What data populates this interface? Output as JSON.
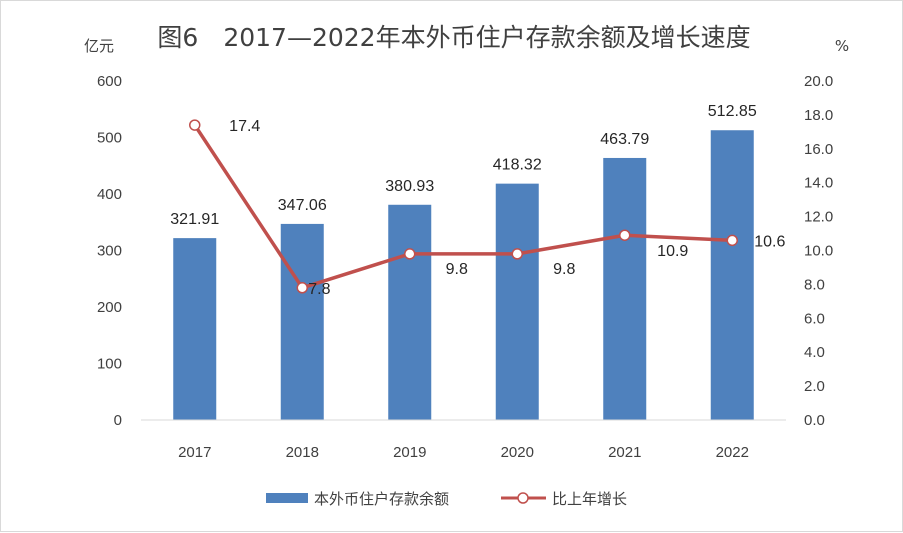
{
  "chart_data": {
    "type": "bar",
    "title": "图6　2017—2022年本外币住户存款余额及增长速度",
    "y_left_unit": "亿元",
    "y_right_unit": "%",
    "categories": [
      "2017",
      "2018",
      "2019",
      "2020",
      "2021",
      "2022"
    ],
    "y_left_ticks": [
      "0",
      "100",
      "200",
      "300",
      "400",
      "500",
      "600"
    ],
    "y_right_ticks": [
      "0.0",
      "2.0",
      "4.0",
      "6.0",
      "8.0",
      "10.0",
      "12.0",
      "14.0",
      "16.0",
      "18.0",
      "20.0"
    ],
    "ylim_left": [
      0,
      600
    ],
    "ylim_right": [
      0,
      20
    ],
    "series": [
      {
        "name": "本外币住户存款余额",
        "type": "bar",
        "axis": "left",
        "color": "#4f81bd",
        "values": [
          321.91,
          347.06,
          380.93,
          418.32,
          463.79,
          512.85
        ],
        "labels": [
          "321.91",
          "347.06",
          "380.93",
          "418.32",
          "463.79",
          "512.85"
        ]
      },
      {
        "name": "比上年增长",
        "type": "line",
        "axis": "right",
        "color": "#c0504d",
        "values": [
          17.4,
          7.8,
          9.8,
          9.8,
          10.9,
          10.6
        ],
        "labels": [
          "17.4",
          "7.8",
          "9.8",
          "9.8",
          "10.9",
          "10.6"
        ]
      }
    ],
    "grid": false,
    "legend_position": "bottom"
  }
}
